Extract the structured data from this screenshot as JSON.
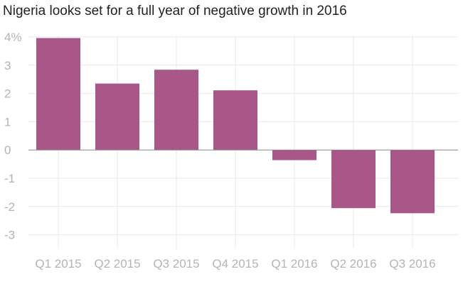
{
  "chart_data": {
    "type": "bar",
    "title": "Nigeria looks set for a full year of negative growth in 2016",
    "categories": [
      "Q1 2015",
      "Q2 2015",
      "Q3 2015",
      "Q4 2015",
      "Q1 2016",
      "Q2 2016",
      "Q3 2016"
    ],
    "values": [
      3.96,
      2.35,
      2.84,
      2.11,
      -0.36,
      -2.06,
      -2.24
    ],
    "y_ticks": [
      4,
      3,
      2,
      1,
      0,
      -1,
      -2,
      -3
    ],
    "y_tick_labels": [
      "4%",
      "3",
      "2",
      "1",
      "0",
      "-1",
      "-2",
      "-3"
    ],
    "ylim": [
      -3.5,
      4.3
    ],
    "xlabel": "",
    "ylabel": "",
    "grid": true,
    "legend": "none",
    "colors": {
      "bar": "#a85788",
      "grid": "#e9e9e9",
      "zero_line": "#888888",
      "tick_text": "#b4b4b4"
    }
  }
}
